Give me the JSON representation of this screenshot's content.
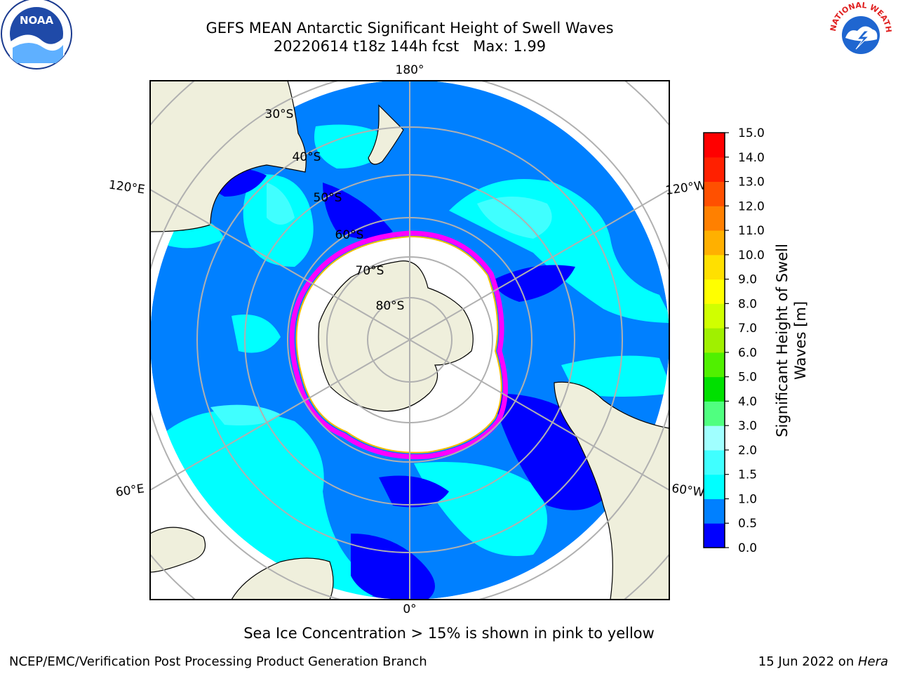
{
  "header": {
    "title": "GEFS MEAN Antarctic Significant Height of Swell Waves",
    "subtitle": "20220614 t18z 144h fcst   Max: 1.99"
  },
  "logos": {
    "noaa": "NOAA",
    "nws_ring": "NATIONAL WEATHER SERVICE"
  },
  "map": {
    "projection": "south-polar-stereographic",
    "longitude_labels": [
      "180°",
      "120°E",
      "120°W",
      "60°E",
      "60°W",
      "0°"
    ],
    "latitude_labels": [
      "30°S",
      "40°S",
      "50°S",
      "60°S",
      "70°S",
      "80°S"
    ],
    "colors": {
      "ocean_low": "#0000ff",
      "ocean_mid": "#0080ff",
      "ocean_high": "#00ffff",
      "ocean_highest": "#40ffff",
      "land": "#efefdc",
      "ice_edge_pink": "#ff00ff",
      "ice_edge_yellow": "#ffc000",
      "gridline": "#b0b0b0"
    }
  },
  "colorbar": {
    "label_line1": "Significant Height of Swell",
    "label_line2": "Waves [m]",
    "ticks": [
      "0.0",
      "0.5",
      "1.0",
      "1.5",
      "2.0",
      "3.0",
      "4.0",
      "5.0",
      "6.0",
      "7.0",
      "8.0",
      "9.0",
      "10.0",
      "11.0",
      "12.0",
      "13.0",
      "14.0",
      "15.0"
    ],
    "colors": [
      "#0000ff",
      "#0080ff",
      "#00ffff",
      "#40ffff",
      "#a0ffff",
      "#50ff80",
      "#00e000",
      "#50f000",
      "#a0f000",
      "#d0ff00",
      "#ffff00",
      "#ffe000",
      "#ffb000",
      "#ff8000",
      "#ff5000",
      "#ff2000",
      "#ff0000"
    ]
  },
  "caption": "Sea Ice Concentration > 15% is shown in pink to yellow",
  "footer": {
    "left": "NCEP/EMC/Verification Post Processing Product Generation Branch",
    "date": "15 Jun 2022 on ",
    "host": "Hera"
  }
}
